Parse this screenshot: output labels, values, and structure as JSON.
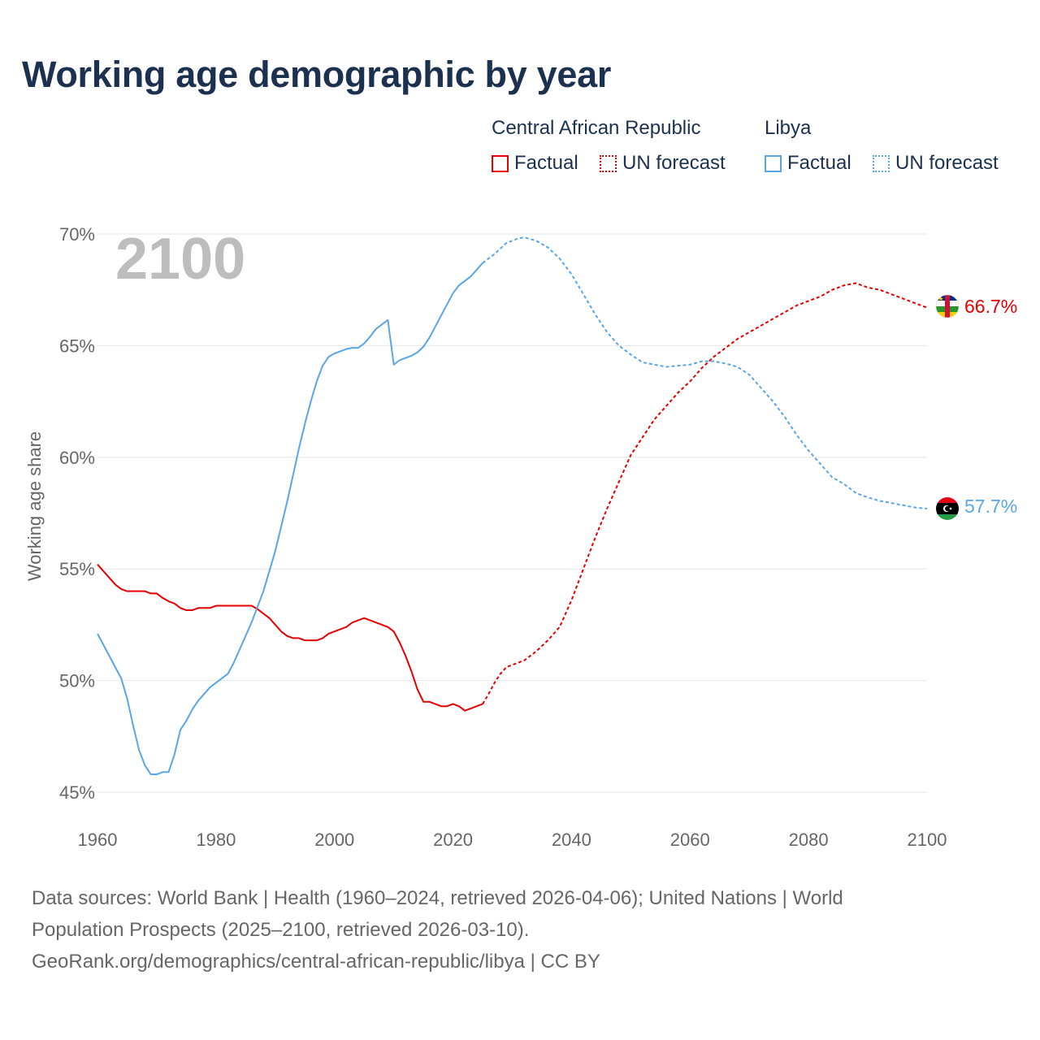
{
  "title": "Working age demographic by year",
  "legend": {
    "groups": [
      {
        "name": "Central African Republic",
        "color": "#e60000",
        "items": [
          {
            "label": "Factual",
            "style": "solid"
          },
          {
            "label": "UN forecast",
            "style": "dotted"
          }
        ]
      },
      {
        "name": "Libya",
        "color": "#5aa5e6",
        "items": [
          {
            "label": "Factual",
            "style": "solid"
          },
          {
            "label": "UN forecast",
            "style": "dotted"
          }
        ]
      }
    ]
  },
  "sources": {
    "line1": "Data sources: World Bank | Health (1960–2024, retrieved 2026-04-06); United Nations | World",
    "line2": "Population Prospects (2025–2100, retrieved 2026-03-10).",
    "line3": "GeoRank.org/demographics/central-african-republic/libya | CC BY"
  },
  "chart_data": {
    "type": "line",
    "title": "Working age demographic by year",
    "xlabel": "",
    "ylabel": "Working age share",
    "xlim": [
      1960,
      2100
    ],
    "ylim": [
      45,
      70
    ],
    "x_ticks": [
      1960,
      1980,
      2000,
      2020,
      2040,
      2060,
      2080,
      2100
    ],
    "y_ticks": [
      45,
      50,
      55,
      60,
      65,
      70
    ],
    "y_tick_labels": [
      "45%",
      "50%",
      "55%",
      "60%",
      "65%",
      "70%"
    ],
    "year_display": "2100",
    "grid": true,
    "factual_until": 2025,
    "series": [
      {
        "name": "Central African Republic",
        "color": "#e60000",
        "end_label": "66.7%",
        "points": [
          [
            1960,
            55.2
          ],
          [
            1961,
            54.9
          ],
          [
            1962,
            54.6
          ],
          [
            1963,
            54.3
          ],
          [
            1964,
            54.1
          ],
          [
            1965,
            54.0
          ],
          [
            1966,
            54.0
          ],
          [
            1967,
            54.0
          ],
          [
            1968,
            54.0
          ],
          [
            1969,
            53.9
          ],
          [
            1970,
            53.9
          ],
          [
            1971,
            53.7
          ],
          [
            1972,
            53.55
          ],
          [
            1973,
            53.45
          ],
          [
            1974,
            53.25
          ],
          [
            1975,
            53.15
          ],
          [
            1976,
            53.15
          ],
          [
            1977,
            53.25
          ],
          [
            1978,
            53.25
          ],
          [
            1979,
            53.25
          ],
          [
            1980,
            53.35
          ],
          [
            1981,
            53.35
          ],
          [
            1982,
            53.35
          ],
          [
            1983,
            53.35
          ],
          [
            1984,
            53.35
          ],
          [
            1985,
            53.35
          ],
          [
            1986,
            53.35
          ],
          [
            1987,
            53.2
          ],
          [
            1988,
            53.0
          ],
          [
            1989,
            52.8
          ],
          [
            1990,
            52.5
          ],
          [
            1991,
            52.2
          ],
          [
            1992,
            52.0
          ],
          [
            1993,
            51.9
          ],
          [
            1994,
            51.9
          ],
          [
            1995,
            51.8
          ],
          [
            1996,
            51.8
          ],
          [
            1997,
            51.8
          ],
          [
            1998,
            51.9
          ],
          [
            1999,
            52.1
          ],
          [
            2000,
            52.2
          ],
          [
            2001,
            52.3
          ],
          [
            2002,
            52.4
          ],
          [
            2003,
            52.6
          ],
          [
            2004,
            52.7
          ],
          [
            2005,
            52.8
          ],
          [
            2006,
            52.7
          ],
          [
            2007,
            52.6
          ],
          [
            2008,
            52.5
          ],
          [
            2009,
            52.4
          ],
          [
            2010,
            52.2
          ],
          [
            2011,
            51.7
          ],
          [
            2012,
            51.1
          ],
          [
            2013,
            50.4
          ],
          [
            2014,
            49.6
          ],
          [
            2015,
            49.05
          ],
          [
            2016,
            49.05
          ],
          [
            2017,
            48.95
          ],
          [
            2018,
            48.85
          ],
          [
            2019,
            48.85
          ],
          [
            2020,
            48.95
          ],
          [
            2021,
            48.85
          ],
          [
            2022,
            48.65
          ],
          [
            2023,
            48.75
          ],
          [
            2024,
            48.85
          ],
          [
            2025,
            48.95
          ],
          [
            2026,
            49.4
          ],
          [
            2027,
            49.9
          ],
          [
            2028,
            50.3
          ],
          [
            2029,
            50.6
          ],
          [
            2030,
            50.7
          ],
          [
            2032,
            50.9
          ],
          [
            2034,
            51.3
          ],
          [
            2036,
            51.8
          ],
          [
            2038,
            52.4
          ],
          [
            2040,
            53.6
          ],
          [
            2042,
            55.0
          ],
          [
            2044,
            56.4
          ],
          [
            2046,
            57.7
          ],
          [
            2048,
            58.9
          ],
          [
            2050,
            60.1
          ],
          [
            2052,
            60.9
          ],
          [
            2054,
            61.7
          ],
          [
            2056,
            62.3
          ],
          [
            2058,
            62.9
          ],
          [
            2060,
            63.4
          ],
          [
            2062,
            64.0
          ],
          [
            2064,
            64.5
          ],
          [
            2066,
            64.9
          ],
          [
            2068,
            65.3
          ],
          [
            2070,
            65.6
          ],
          [
            2072,
            65.9
          ],
          [
            2074,
            66.2
          ],
          [
            2076,
            66.5
          ],
          [
            2078,
            66.8
          ],
          [
            2080,
            67.0
          ],
          [
            2082,
            67.2
          ],
          [
            2084,
            67.5
          ],
          [
            2086,
            67.7
          ],
          [
            2088,
            67.8
          ],
          [
            2090,
            67.6
          ],
          [
            2092,
            67.5
          ],
          [
            2094,
            67.3
          ],
          [
            2096,
            67.1
          ],
          [
            2098,
            66.9
          ],
          [
            2100,
            66.7
          ]
        ]
      },
      {
        "name": "Libya",
        "color": "#5aa5e6",
        "end_label": "57.7%",
        "points": [
          [
            1960,
            52.1
          ],
          [
            1961,
            51.6
          ],
          [
            1962,
            51.1
          ],
          [
            1963,
            50.6
          ],
          [
            1964,
            50.1
          ],
          [
            1965,
            49.2
          ],
          [
            1966,
            48.0
          ],
          [
            1967,
            46.9
          ],
          [
            1968,
            46.2
          ],
          [
            1969,
            45.8
          ],
          [
            1970,
            45.8
          ],
          [
            1971,
            45.9
          ],
          [
            1972,
            45.9
          ],
          [
            1973,
            46.7
          ],
          [
            1974,
            47.8
          ],
          [
            1975,
            48.2
          ],
          [
            1976,
            48.7
          ],
          [
            1977,
            49.1
          ],
          [
            1978,
            49.4
          ],
          [
            1979,
            49.7
          ],
          [
            1980,
            49.9
          ],
          [
            1981,
            50.1
          ],
          [
            1982,
            50.3
          ],
          [
            1983,
            50.8
          ],
          [
            1984,
            51.4
          ],
          [
            1985,
            52.0
          ],
          [
            1986,
            52.6
          ],
          [
            1987,
            53.3
          ],
          [
            1988,
            54.0
          ],
          [
            1989,
            54.9
          ],
          [
            1990,
            55.8
          ],
          [
            1991,
            56.9
          ],
          [
            1992,
            58.0
          ],
          [
            1993,
            59.2
          ],
          [
            1994,
            60.4
          ],
          [
            1995,
            61.5
          ],
          [
            1996,
            62.5
          ],
          [
            1997,
            63.4
          ],
          [
            1998,
            64.1
          ],
          [
            1999,
            64.5
          ],
          [
            2000,
            64.65
          ],
          [
            2001,
            64.75
          ],
          [
            2002,
            64.85
          ],
          [
            2003,
            64.9
          ],
          [
            2004,
            64.9
          ],
          [
            2005,
            65.1
          ],
          [
            2006,
            65.4
          ],
          [
            2007,
            65.75
          ],
          [
            2008,
            65.95
          ],
          [
            2009,
            66.15
          ],
          [
            2010,
            64.15
          ],
          [
            2011,
            64.35
          ],
          [
            2012,
            64.45
          ],
          [
            2013,
            64.55
          ],
          [
            2014,
            64.7
          ],
          [
            2015,
            64.95
          ],
          [
            2016,
            65.35
          ],
          [
            2017,
            65.85
          ],
          [
            2018,
            66.35
          ],
          [
            2019,
            66.85
          ],
          [
            2020,
            67.35
          ],
          [
            2021,
            67.7
          ],
          [
            2022,
            67.9
          ],
          [
            2023,
            68.1
          ],
          [
            2024,
            68.4
          ],
          [
            2025,
            68.7
          ],
          [
            2026,
            68.9
          ],
          [
            2027,
            69.1
          ],
          [
            2028,
            69.35
          ],
          [
            2029,
            69.6
          ],
          [
            2030,
            69.7
          ],
          [
            2031,
            69.8
          ],
          [
            2032,
            69.85
          ],
          [
            2034,
            69.7
          ],
          [
            2036,
            69.4
          ],
          [
            2038,
            68.9
          ],
          [
            2040,
            68.2
          ],
          [
            2042,
            67.3
          ],
          [
            2044,
            66.4
          ],
          [
            2046,
            65.6
          ],
          [
            2048,
            65.0
          ],
          [
            2050,
            64.6
          ],
          [
            2052,
            64.25
          ],
          [
            2054,
            64.15
          ],
          [
            2056,
            64.05
          ],
          [
            2058,
            64.1
          ],
          [
            2060,
            64.15
          ],
          [
            2062,
            64.3
          ],
          [
            2064,
            64.3
          ],
          [
            2066,
            64.2
          ],
          [
            2068,
            64.05
          ],
          [
            2070,
            63.7
          ],
          [
            2072,
            63.1
          ],
          [
            2074,
            62.5
          ],
          [
            2076,
            61.8
          ],
          [
            2078,
            61.0
          ],
          [
            2080,
            60.3
          ],
          [
            2082,
            59.7
          ],
          [
            2084,
            59.1
          ],
          [
            2086,
            58.8
          ],
          [
            2088,
            58.4
          ],
          [
            2090,
            58.2
          ],
          [
            2092,
            58.05
          ],
          [
            2094,
            57.95
          ],
          [
            2096,
            57.85
          ],
          [
            2098,
            57.75
          ],
          [
            2100,
            57.7
          ]
        ]
      }
    ]
  }
}
